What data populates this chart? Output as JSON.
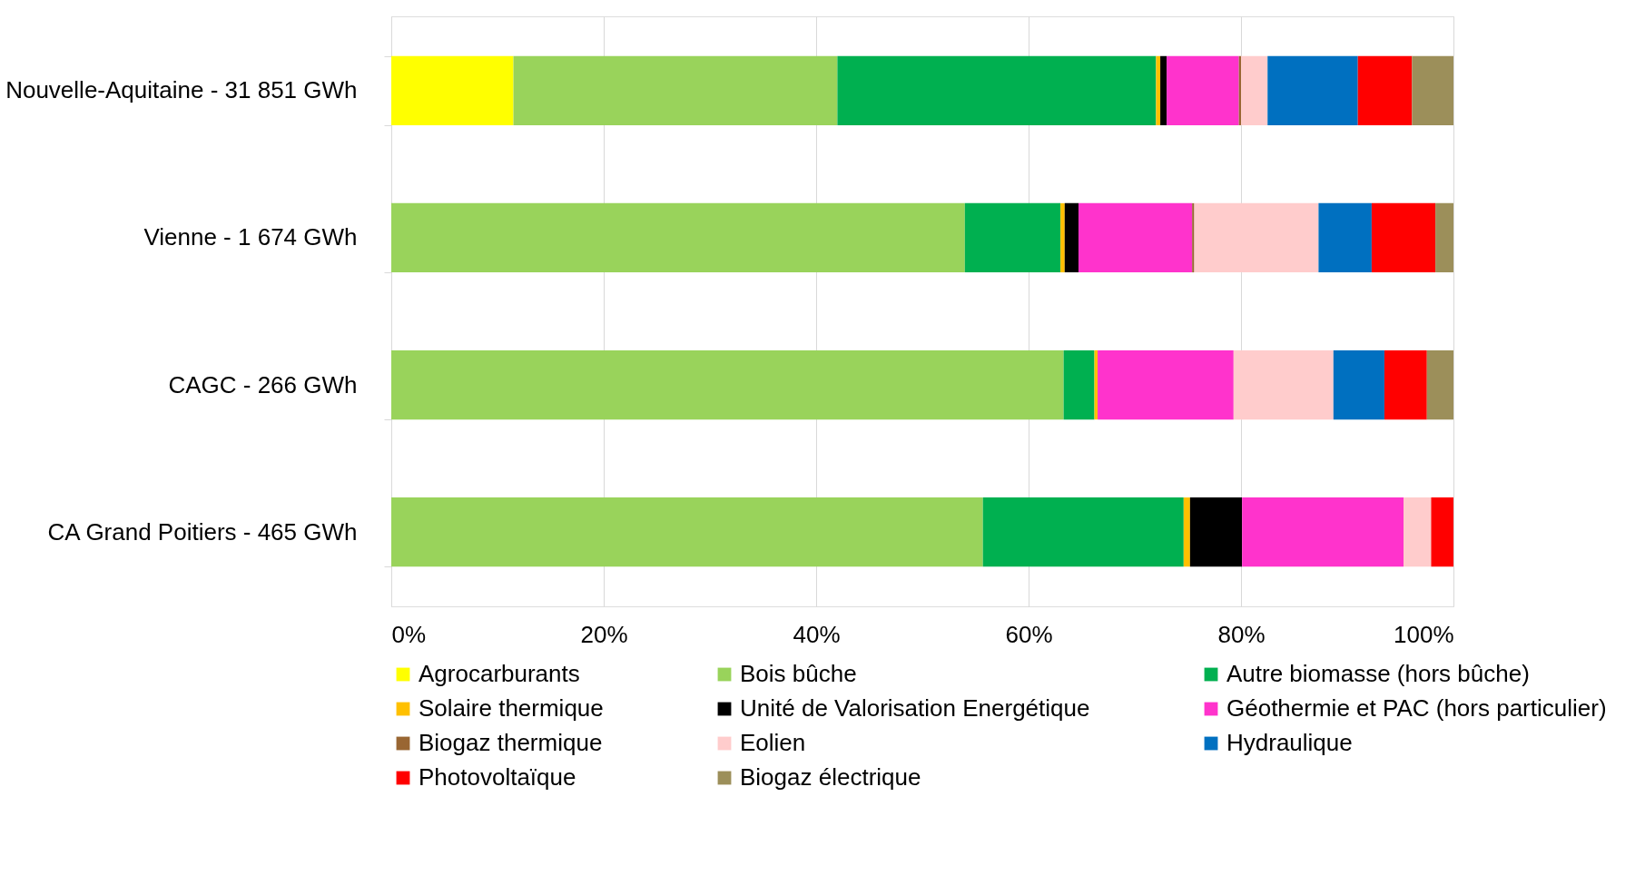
{
  "chart_data": {
    "type": "bar",
    "orientation": "horizontal",
    "stacked": true,
    "categories": [
      "Nouvelle-Aquitaine - 31 851 GWh",
      "Vienne - 1 674 GWh",
      "CAGC - 266 GWh",
      "CA Grand Poitiers - 465 GWh"
    ],
    "series": [
      {
        "name": "Agrocarburants",
        "color": "#ffff00",
        "values": [
          11.5,
          0,
          0,
          0
        ]
      },
      {
        "name": "Bois bûche",
        "color": "#99d35b",
        "values": [
          30.5,
          54.0,
          63.3,
          55.7
        ]
      },
      {
        "name": "Autre biomasse (hors bûche)",
        "color": "#00b050",
        "values": [
          30.0,
          9.0,
          2.9,
          18.9
        ]
      },
      {
        "name": "Solaire thermique",
        "color": "#ffc000",
        "values": [
          0.4,
          0.4,
          0.3,
          0.6
        ]
      },
      {
        "name": "Unité de Valorisation Energétique",
        "color": "#000000",
        "values": [
          0.6,
          1.3,
          0,
          4.9
        ]
      },
      {
        "name": "Géothermie et PAC (hors particulier)",
        "color": "#ff33cc",
        "values": [
          6.8,
          10.7,
          12.8,
          15.2
        ]
      },
      {
        "name": "Biogaz thermique",
        "color": "#996633",
        "values": [
          0.2,
          0.2,
          0,
          0
        ]
      },
      {
        "name": "Eolien",
        "color": "#ffcccc",
        "values": [
          2.5,
          11.7,
          9.4,
          2.6
        ]
      },
      {
        "name": "Hydraulique",
        "color": "#0070c0",
        "values": [
          8.5,
          5.0,
          4.8,
          0
        ]
      },
      {
        "name": "Photovoltaïque",
        "color": "#ff0000",
        "values": [
          5.1,
          6.0,
          4.0,
          2.1
        ]
      },
      {
        "name": "Biogaz électrique",
        "color": "#9c8f5a",
        "values": [
          3.9,
          1.7,
          2.5,
          0
        ]
      }
    ],
    "xlim": [
      0,
      100
    ],
    "xticks": [
      {
        "value": 0,
        "label": "0%"
      },
      {
        "value": 20,
        "label": "20%"
      },
      {
        "value": 40,
        "label": "40%"
      },
      {
        "value": 60,
        "label": "60%"
      },
      {
        "value": 80,
        "label": "80%"
      },
      {
        "value": 100,
        "label": "100%"
      }
    ],
    "grid": "x",
    "legend": "bottom"
  }
}
